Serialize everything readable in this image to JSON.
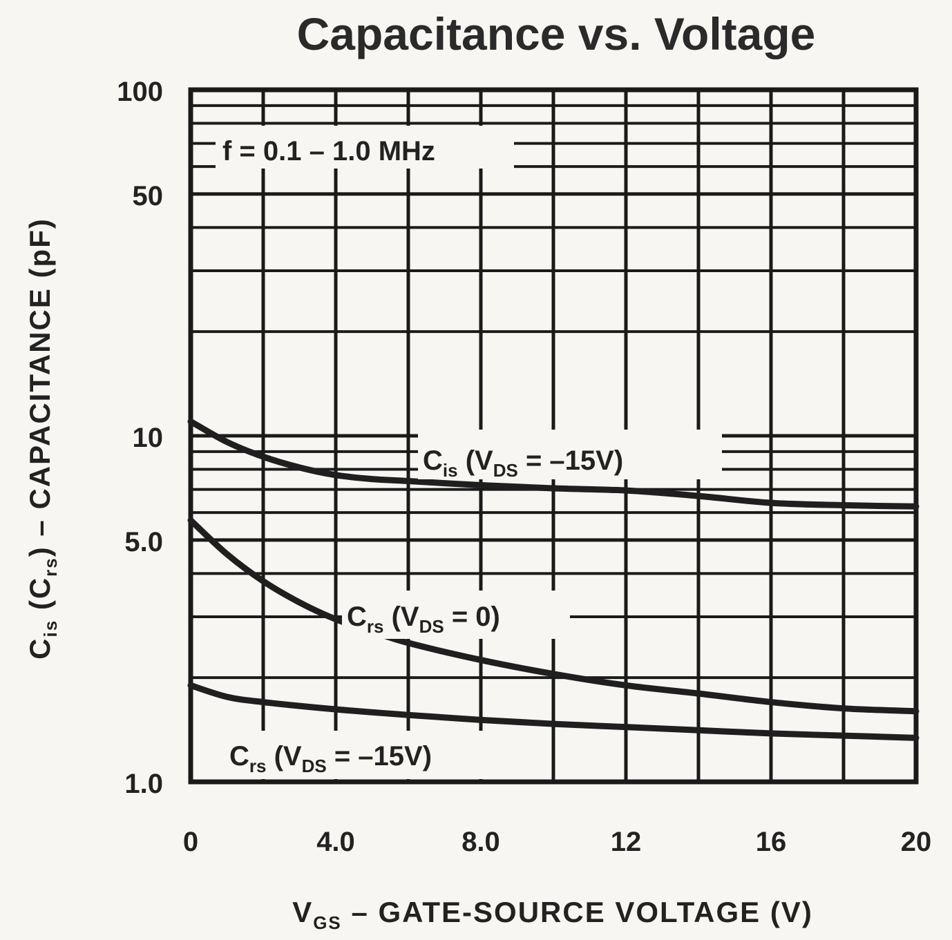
{
  "chart_data": {
    "type": "line",
    "title": "Capacitance vs. Voltage",
    "xlabel": {
      "main": "V",
      "sub": "GS",
      "rest": " – GATE-SOURCE VOLTAGE (V)"
    },
    "ylabel": {
      "c1": "C",
      "c1_sub": "is",
      "c2": " (C",
      "c2_sub": "rs",
      "rest": ") – CAPACITANCE (pF)"
    },
    "xlim": [
      0,
      20
    ],
    "ylim": [
      1,
      100
    ],
    "yscale": "log",
    "x_ticks": [
      0,
      4,
      8,
      12,
      16,
      20
    ],
    "x_tick_labels": [
      "0",
      "4.0",
      "8.0",
      "12",
      "16",
      "20"
    ],
    "y_ticks": [
      1,
      5,
      10,
      50,
      100
    ],
    "y_tick_labels": [
      "1.0",
      "5.0",
      "10",
      "50",
      "100"
    ],
    "grid": true,
    "condition_text": "f = 0.1 – 1.0 MHz",
    "series": [
      {
        "id": "cis",
        "label_main": "C",
        "label_sub": "is",
        "label_open": " (V",
        "label_sub2": "DS",
        "label_close": " = –15V)",
        "x": [
          0,
          1,
          2,
          3,
          4,
          5,
          6,
          8,
          10,
          12,
          14,
          16,
          18,
          20
        ],
        "values": [
          11,
          9.6,
          8.7,
          8.1,
          7.7,
          7.5,
          7.4,
          7.2,
          7.05,
          6.95,
          6.7,
          6.4,
          6.3,
          6.25
        ]
      },
      {
        "id": "crs0",
        "label_main": "C",
        "label_sub": "rs",
        "label_open": " (V",
        "label_sub2": "DS",
        "label_close": " = 0)",
        "x": [
          0,
          1,
          2,
          3,
          4,
          5,
          6,
          8,
          10,
          12,
          14,
          16,
          18,
          20
        ],
        "values": [
          5.7,
          4.55,
          3.8,
          3.3,
          2.95,
          2.72,
          2.52,
          2.25,
          2.05,
          1.9,
          1.8,
          1.7,
          1.63,
          1.6
        ]
      },
      {
        "id": "crs15",
        "label_main": "C",
        "label_sub": "rs",
        "label_open": " (V",
        "label_sub2": "DS",
        "label_close": " = –15V)",
        "x": [
          0,
          1,
          2,
          4,
          6,
          8,
          10,
          12,
          14,
          16,
          18,
          20
        ],
        "values": [
          1.9,
          1.76,
          1.7,
          1.62,
          1.56,
          1.51,
          1.47,
          1.44,
          1.41,
          1.38,
          1.36,
          1.34
        ]
      }
    ]
  }
}
